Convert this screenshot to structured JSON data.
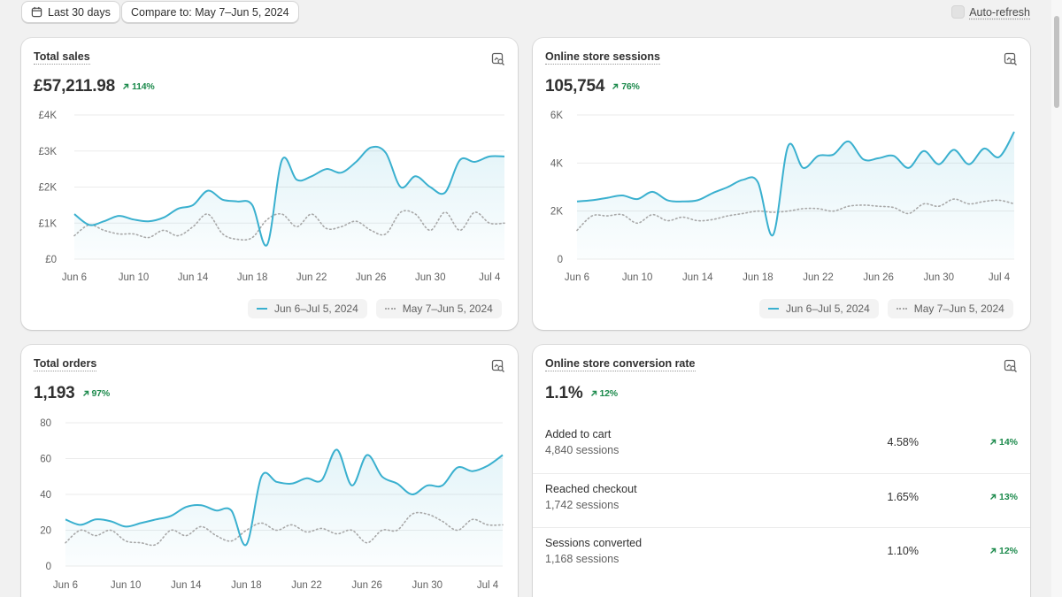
{
  "toolbar": {
    "date_range_label": "Last 30 days",
    "compare_label": "Compare to: May 7–Jun 5, 2024",
    "auto_refresh_label": "Auto-refresh",
    "auto_refresh_checked": false
  },
  "colors": {
    "current_series": "#3ab0cf",
    "previous_series": "#a8a8a8",
    "positive_delta": "#1c8a4c"
  },
  "legend": {
    "current": "Jun 6–Jul 5, 2024",
    "previous": "May 7–Jun 5, 2024"
  },
  "x_ticks": [
    "Jun 6",
    "Jun 10",
    "Jun 14",
    "Jun 18",
    "Jun 22",
    "Jun 26",
    "Jun 30",
    "Jul 4"
  ],
  "cards": {
    "total_sales": {
      "title": "Total sales",
      "value": "£57,211.98",
      "delta": "114%",
      "icon": "chart-search-icon"
    },
    "sessions": {
      "title": "Online store sessions",
      "value": "105,754",
      "delta": "76%",
      "icon": "chart-search-icon"
    },
    "orders": {
      "title": "Total orders",
      "value": "1,193",
      "delta": "97%",
      "icon": "chart-search-icon"
    },
    "conversion": {
      "title": "Online store conversion rate",
      "value": "1.1%",
      "delta": "12%",
      "icon": "chart-search-icon",
      "rows": [
        {
          "label": "Added to cart",
          "sub": "4,840 sessions",
          "value": "4.58%",
          "delta": "14%"
        },
        {
          "label": "Reached checkout",
          "sub": "1,742 sessions",
          "value": "1.65%",
          "delta": "13%"
        },
        {
          "label": "Sessions converted",
          "sub": "1,168 sessions",
          "value": "1.10%",
          "delta": "12%"
        }
      ]
    }
  },
  "chart_data": [
    {
      "type": "area",
      "title": "Total sales",
      "y_ticks": [
        "£0",
        "£1K",
        "£2K",
        "£3K",
        "£4K"
      ],
      "ylim": [
        0,
        4000
      ],
      "x": [
        "Jun 6",
        "Jun 7",
        "Jun 8",
        "Jun 9",
        "Jun 10",
        "Jun 11",
        "Jun 12",
        "Jun 13",
        "Jun 14",
        "Jun 15",
        "Jun 16",
        "Jun 17",
        "Jun 18",
        "Jun 19",
        "Jun 20",
        "Jun 21",
        "Jun 22",
        "Jun 23",
        "Jun 24",
        "Jun 25",
        "Jun 26",
        "Jun 27",
        "Jun 28",
        "Jun 29",
        "Jun 30",
        "Jul 1",
        "Jul 2",
        "Jul 3",
        "Jul 4",
        "Jul 5"
      ],
      "series": [
        {
          "name": "Jun 6–Jul 5, 2024",
          "values": [
            1250,
            950,
            1050,
            1200,
            1100,
            1050,
            1150,
            1400,
            1500,
            1900,
            1650,
            1600,
            1500,
            400,
            2750,
            2200,
            2300,
            2500,
            2400,
            2700,
            3100,
            2950,
            2000,
            2300,
            2000,
            1850,
            2750,
            2700,
            2850,
            2850
          ]
        },
        {
          "name": "May 7–Jun 5, 2024",
          "values": [
            650,
            950,
            800,
            700,
            700,
            600,
            800,
            650,
            900,
            1250,
            700,
            550,
            600,
            1100,
            1250,
            900,
            1250,
            850,
            900,
            1050,
            800,
            700,
            1300,
            1250,
            800,
            1300,
            800,
            1300,
            1000,
            1000
          ]
        }
      ]
    },
    {
      "type": "area",
      "title": "Online store sessions",
      "y_ticks": [
        "0",
        "2K",
        "4K",
        "6K"
      ],
      "ylim": [
        0,
        6000
      ],
      "x": [
        "Jun 6",
        "Jun 7",
        "Jun 8",
        "Jun 9",
        "Jun 10",
        "Jun 11",
        "Jun 12",
        "Jun 13",
        "Jun 14",
        "Jun 15",
        "Jun 16",
        "Jun 17",
        "Jun 18",
        "Jun 19",
        "Jun 20",
        "Jun 21",
        "Jun 22",
        "Jun 23",
        "Jun 24",
        "Jun 25",
        "Jun 26",
        "Jun 27",
        "Jun 28",
        "Jun 29",
        "Jun 30",
        "Jul 1",
        "Jul 2",
        "Jul 3",
        "Jul 4",
        "Jul 5"
      ],
      "series": [
        {
          "name": "Jun 6–Jul 5, 2024",
          "values": [
            2400,
            2450,
            2550,
            2650,
            2500,
            2800,
            2450,
            2400,
            2450,
            2750,
            3000,
            3300,
            3200,
            1000,
            4700,
            3800,
            4300,
            4350,
            4900,
            4150,
            4200,
            4300,
            3800,
            4500,
            3950,
            4550,
            3950,
            4600,
            4250,
            5300
          ]
        },
        {
          "name": "May 7–Jun 5, 2024",
          "values": [
            1200,
            1800,
            1800,
            1850,
            1500,
            1850,
            1600,
            1750,
            1600,
            1650,
            1800,
            1900,
            2000,
            1950,
            2000,
            2100,
            2100,
            2000,
            2200,
            2250,
            2200,
            2150,
            1900,
            2300,
            2200,
            2500,
            2300,
            2400,
            2450,
            2300
          ]
        }
      ]
    },
    {
      "type": "area",
      "title": "Total orders",
      "y_ticks": [
        "0",
        "20",
        "40",
        "60",
        "80"
      ],
      "ylim": [
        0,
        80
      ],
      "x": [
        "Jun 6",
        "Jun 7",
        "Jun 8",
        "Jun 9",
        "Jun 10",
        "Jun 11",
        "Jun 12",
        "Jun 13",
        "Jun 14",
        "Jun 15",
        "Jun 16",
        "Jun 17",
        "Jun 18",
        "Jun 19",
        "Jun 20",
        "Jun 21",
        "Jun 22",
        "Jun 23",
        "Jun 24",
        "Jun 25",
        "Jun 26",
        "Jun 27",
        "Jun 28",
        "Jun 29",
        "Jun 30",
        "Jul 1",
        "Jul 2",
        "Jul 3",
        "Jul 4",
        "Jul 5"
      ],
      "series": [
        {
          "name": "Jun 6–Jul 5, 2024",
          "values": [
            26,
            23,
            26,
            25,
            22,
            24,
            26,
            28,
            33,
            34,
            31,
            31,
            12,
            50,
            47,
            46,
            49,
            48,
            65,
            45,
            62,
            50,
            46,
            40,
            45,
            45,
            55,
            53,
            56,
            62
          ]
        },
        {
          "name": "May 7–Jun 5, 2024",
          "values": [
            13,
            20,
            17,
            20,
            14,
            13,
            12,
            20,
            17,
            22,
            17,
            14,
            20,
            24,
            20,
            23,
            19,
            21,
            18,
            20,
            13,
            20,
            20,
            29,
            29,
            25,
            20,
            26,
            23,
            23
          ]
        }
      ]
    }
  ]
}
